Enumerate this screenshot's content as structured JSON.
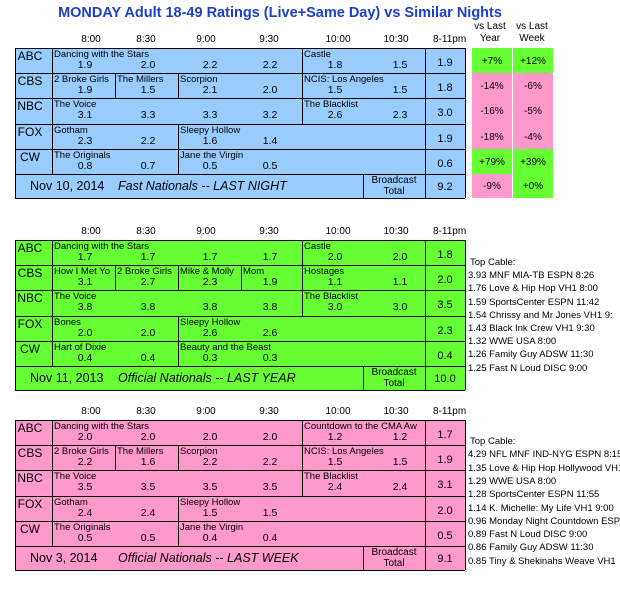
{
  "title": "MONDAY Adult 18-49 Ratings (Live+Same Day) vs Similar Nights",
  "compare_headers": {
    "year_1": "vs Last",
    "year_2": "Year",
    "week_1": "vs Last",
    "week_2": "Week"
  },
  "time_slots": [
    "8:00",
    "8:30",
    "9:00",
    "9:30",
    "10:00",
    "10:30",
    "8-11pm"
  ],
  "broadcast_label": "Broadcast",
  "total_label": "Total",
  "colors": {
    "blue": "#99ccff",
    "green": "#66ff33",
    "pink": "#ff99cc",
    "pos": "#66ff33",
    "neg": "#ff99cc"
  },
  "networks": [
    "ABC",
    "CBS",
    "NBC",
    "FOX",
    "CW"
  ],
  "panels": [
    {
      "id": "last-night",
      "footer_date": "Nov 10, 2014",
      "footer_label": "Fast Nationals -- LAST NIGHT",
      "total": "9.2",
      "total_year": "-9%",
      "total_week": "+0%",
      "rows": [
        {
          "shows": [
            {
              "name": "Dancing with the Stars",
              "col": 0
            },
            {
              "name": "Castle",
              "col": 4
            }
          ],
          "values": [
            "1.9",
            "2.0",
            "2.2",
            "2.2",
            "1.8",
            "1.5"
          ],
          "total": "1.9",
          "year": "+7%",
          "week": "+12%"
        },
        {
          "shows": [
            {
              "name": "2 Broke Girls",
              "col": 0
            },
            {
              "name": "The Millers",
              "col": 1
            },
            {
              "name": "Scorpion",
              "col": 2
            },
            {
              "name": "NCIS: Los Angeles",
              "col": 4
            }
          ],
          "values": [
            "1.9",
            "1.5",
            "2.1",
            "2.0",
            "1.5",
            "1.5"
          ],
          "total": "1.8",
          "year": "-14%",
          "week": "-6%"
        },
        {
          "shows": [
            {
              "name": "The Voice",
              "col": 0
            },
            {
              "name": "The Blacklist",
              "col": 4
            }
          ],
          "values": [
            "3.1",
            "3.3",
            "3.3",
            "3.2",
            "2.6",
            "2.3"
          ],
          "total": "3.0",
          "year": "-16%",
          "week": "-5%"
        },
        {
          "shows": [
            {
              "name": "Gotham",
              "col": 0
            },
            {
              "name": "Sleepy Hollow",
              "col": 2
            }
          ],
          "values": [
            "2.3",
            "2.2",
            "1.6",
            "1.4",
            "",
            ""
          ],
          "total": "1.9",
          "year": "-18%",
          "week": "-4%"
        },
        {
          "shows": [
            {
              "name": "The Originals",
              "col": 0
            },
            {
              "name": "Jane the Virgin",
              "col": 2
            }
          ],
          "values": [
            "0.8",
            "0.7",
            "0.5",
            "0.5",
            "",
            ""
          ],
          "total": "0.6",
          "year": "+79%",
          "week": "+39%"
        }
      ]
    },
    {
      "id": "last-year",
      "footer_date": "Nov 11, 2013",
      "footer_label": "Official Nationals -- LAST YEAR",
      "total": "10.0",
      "rows": [
        {
          "shows": [
            {
              "name": "Dancing with the Stars",
              "col": 0
            },
            {
              "name": "Castle",
              "col": 4
            }
          ],
          "values": [
            "1.7",
            "1.7",
            "1.7",
            "1.7",
            "2.0",
            "2.0"
          ],
          "total": "1.8"
        },
        {
          "shows": [
            {
              "name": "How I Met Yo",
              "col": 0
            },
            {
              "name": "2 Broke Girls",
              "col": 1
            },
            {
              "name": "Mike & Molly",
              "col": 2
            },
            {
              "name": "Mom",
              "col": 3
            },
            {
              "name": "Hostages",
              "col": 4
            }
          ],
          "values": [
            "3.1",
            "2.7",
            "2.3",
            "1.9",
            "1.1",
            "1.1"
          ],
          "total": "2.0"
        },
        {
          "shows": [
            {
              "name": "The Voice",
              "col": 0
            },
            {
              "name": "The Blacklist",
              "col": 4
            }
          ],
          "values": [
            "3.8",
            "3.8",
            "3.8",
            "3.8",
            "3.0",
            "3.0"
          ],
          "total": "3.5"
        },
        {
          "shows": [
            {
              "name": "Bones",
              "col": 0
            },
            {
              "name": "Sleepy Hollow",
              "col": 2
            }
          ],
          "values": [
            "2.0",
            "2.0",
            "2.6",
            "2.6",
            "",
            ""
          ],
          "total": "2.3"
        },
        {
          "shows": [
            {
              "name": "Hart of Dixie",
              "col": 0
            },
            {
              "name": "Beauty and the Beast",
              "col": 2
            }
          ],
          "values": [
            "0.4",
            "0.4",
            "0.3",
            "0.3",
            "",
            ""
          ],
          "total": "0.4"
        }
      ]
    },
    {
      "id": "last-week",
      "footer_date": "Nov 3, 2014",
      "footer_label": "Official Nationals -- LAST WEEK",
      "total": "9.1",
      "rows": [
        {
          "shows": [
            {
              "name": "Dancing with the Stars",
              "col": 0
            },
            {
              "name": "Countdown to the CMA Aw",
              "col": 4
            }
          ],
          "values": [
            "2.0",
            "2.0",
            "2.0",
            "2.0",
            "1.2",
            "1.2"
          ],
          "total": "1.7"
        },
        {
          "shows": [
            {
              "name": "2 Broke Girls",
              "col": 0
            },
            {
              "name": "The Millers",
              "col": 1
            },
            {
              "name": "Scorpion",
              "col": 2
            },
            {
              "name": "NCIS: Los Angeles",
              "col": 4
            }
          ],
          "values": [
            "2.2",
            "1.6",
            "2.2",
            "2.2",
            "1.5",
            "1.5"
          ],
          "total": "1.9"
        },
        {
          "shows": [
            {
              "name": "The Voice",
              "col": 0
            },
            {
              "name": "The Blacklist",
              "col": 4
            }
          ],
          "values": [
            "3.5",
            "3.5",
            "3.5",
            "3.5",
            "2.4",
            "2.4"
          ],
          "total": "3.1"
        },
        {
          "shows": [
            {
              "name": "Gotham",
              "col": 0
            },
            {
              "name": "Sleepy Hollow",
              "col": 2
            }
          ],
          "values": [
            "2.4",
            "2.4",
            "1.5",
            "1.5",
            "",
            ""
          ],
          "total": "2.0"
        },
        {
          "shows": [
            {
              "name": "The Originals",
              "col": 0
            },
            {
              "name": "Jane the Virgin",
              "col": 2
            }
          ],
          "values": [
            "0.5",
            "0.5",
            "0.4",
            "0.4",
            "",
            ""
          ],
          "total": "0.5"
        }
      ]
    }
  ],
  "cable_blocks": [
    {
      "header": "Top Cable:",
      "items": [
        "3.93 MNF MIA-TB ESPN 8:26",
        "1.76 Love & Hip Hop VH1 8:00",
        "1.59 SportsCenter ESPN 11:42",
        "1.54 Chrissy and Mr Jones VH1 9:",
        "1.43 Black Ink Crew VH1 9:30",
        "1.32 WWE USA 8:00",
        "1.26 Family Guy ADSW 11:30",
        "1.25 Fast N Loud DISC 9:00"
      ]
    },
    {
      "header": "Top Cable:",
      "items": [
        "4.29 NFL MNF IND-NYG ESPN 8:15",
        "1.35 Love & Hip Hop Hollywood VH1 9",
        "1.29 WWE USA 8:00",
        "1.28 SportsCenter ESPN 11:55",
        "1.14 K. Michelle: My Life VH1 9:00",
        "0.96 Monday Night Countdown ESP",
        "0.89 Fast N Loud DISC 9:00",
        "0.86 Family Guy ADSW 11:30",
        "0.85 Tiny & Shekinahs Weave VH1"
      ]
    }
  ]
}
